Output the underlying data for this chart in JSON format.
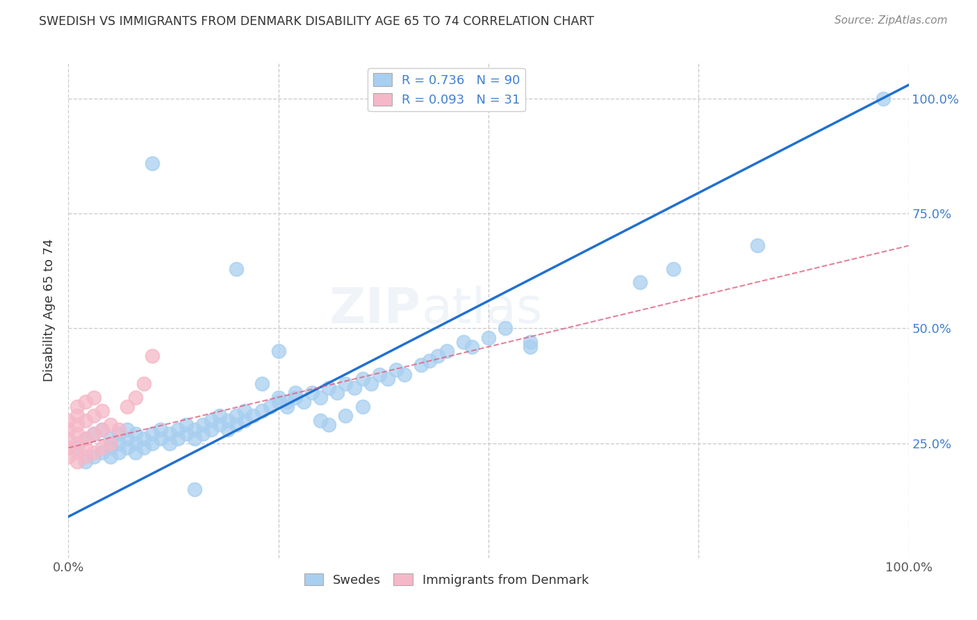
{
  "title": "SWEDISH VS IMMIGRANTS FROM DENMARK DISABILITY AGE 65 TO 74 CORRELATION CHART",
  "source": "Source: ZipAtlas.com",
  "ylabel": "Disability Age 65 to 74",
  "xlim": [
    0.0,
    1.0
  ],
  "ylim": [
    0.0,
    1.08
  ],
  "xtick_vals": [
    0.0,
    0.25,
    0.5,
    0.75,
    1.0
  ],
  "xtick_labels_bottom": [
    "0.0%",
    "",
    "",
    "",
    "100.0%"
  ],
  "ytick_vals": [
    0.25,
    0.5,
    0.75,
    1.0
  ],
  "ytick_labels": [
    "25.0%",
    "50.0%",
    "75.0%",
    "100.0%"
  ],
  "legend_text1": "R = 0.736   N = 90",
  "legend_text2": "R = 0.093   N = 31",
  "blue_color": "#A8CFF0",
  "pink_color": "#F5B8C8",
  "line_blue": "#2070D0",
  "line_pink_color": "#E06080",
  "grid_color": "#CCCCCC",
  "title_color": "#333333",
  "right_label_color": "#4080D0",
  "watermark": "ZIPatlas",
  "swedes_x": [
    0.01,
    0.02,
    0.02,
    0.03,
    0.03,
    0.04,
    0.04,
    0.05,
    0.05,
    0.05,
    0.06,
    0.06,
    0.06,
    0.07,
    0.07,
    0.07,
    0.08,
    0.08,
    0.08,
    0.09,
    0.09,
    0.1,
    0.1,
    0.11,
    0.11,
    0.12,
    0.12,
    0.13,
    0.13,
    0.14,
    0.14,
    0.15,
    0.15,
    0.16,
    0.16,
    0.17,
    0.17,
    0.18,
    0.18,
    0.19,
    0.19,
    0.2,
    0.2,
    0.21,
    0.21,
    0.22,
    0.23,
    0.24,
    0.25,
    0.26,
    0.27,
    0.28,
    0.29,
    0.3,
    0.31,
    0.32,
    0.33,
    0.34,
    0.35,
    0.36,
    0.37,
    0.38,
    0.39,
    0.4,
    0.42,
    0.43,
    0.44,
    0.45,
    0.47,
    0.48,
    0.5,
    0.52,
    0.55,
    0.3,
    0.31,
    0.33,
    0.35,
    0.25,
    0.26,
    0.27,
    0.15,
    0.2,
    0.25,
    0.55,
    0.68,
    0.72,
    0.82,
    0.97,
    0.1,
    0.23
  ],
  "swedes_y": [
    0.24,
    0.21,
    0.26,
    0.22,
    0.27,
    0.23,
    0.28,
    0.22,
    0.24,
    0.26,
    0.23,
    0.25,
    0.27,
    0.24,
    0.26,
    0.28,
    0.23,
    0.25,
    0.27,
    0.24,
    0.26,
    0.25,
    0.27,
    0.26,
    0.28,
    0.25,
    0.27,
    0.26,
    0.28,
    0.27,
    0.29,
    0.26,
    0.28,
    0.27,
    0.29,
    0.28,
    0.3,
    0.29,
    0.31,
    0.28,
    0.3,
    0.29,
    0.31,
    0.3,
    0.32,
    0.31,
    0.32,
    0.33,
    0.34,
    0.33,
    0.35,
    0.34,
    0.36,
    0.35,
    0.37,
    0.36,
    0.38,
    0.37,
    0.39,
    0.38,
    0.4,
    0.39,
    0.41,
    0.4,
    0.42,
    0.43,
    0.44,
    0.45,
    0.47,
    0.46,
    0.48,
    0.5,
    0.47,
    0.3,
    0.29,
    0.31,
    0.33,
    0.35,
    0.34,
    0.36,
    0.15,
    0.63,
    0.45,
    0.46,
    0.6,
    0.63,
    0.68,
    1.0,
    0.86,
    0.38
  ],
  "denmark_x": [
    0.0,
    0.0,
    0.0,
    0.0,
    0.0,
    0.01,
    0.01,
    0.01,
    0.01,
    0.01,
    0.01,
    0.01,
    0.02,
    0.02,
    0.02,
    0.02,
    0.02,
    0.03,
    0.03,
    0.03,
    0.03,
    0.04,
    0.04,
    0.04,
    0.05,
    0.05,
    0.06,
    0.07,
    0.08,
    0.09,
    0.1
  ],
  "denmark_y": [
    0.22,
    0.24,
    0.26,
    0.28,
    0.3,
    0.21,
    0.23,
    0.25,
    0.27,
    0.29,
    0.31,
    0.33,
    0.22,
    0.24,
    0.26,
    0.3,
    0.34,
    0.23,
    0.27,
    0.31,
    0.35,
    0.24,
    0.28,
    0.32,
    0.25,
    0.29,
    0.28,
    0.33,
    0.35,
    0.38,
    0.44
  ],
  "blue_line_x0": 0.0,
  "blue_line_y0": 0.09,
  "blue_line_x1": 1.0,
  "blue_line_y1": 1.03,
  "pink_line_x0": 0.0,
  "pink_line_y0": 0.24,
  "pink_line_x1": 1.0,
  "pink_line_y1": 0.68
}
